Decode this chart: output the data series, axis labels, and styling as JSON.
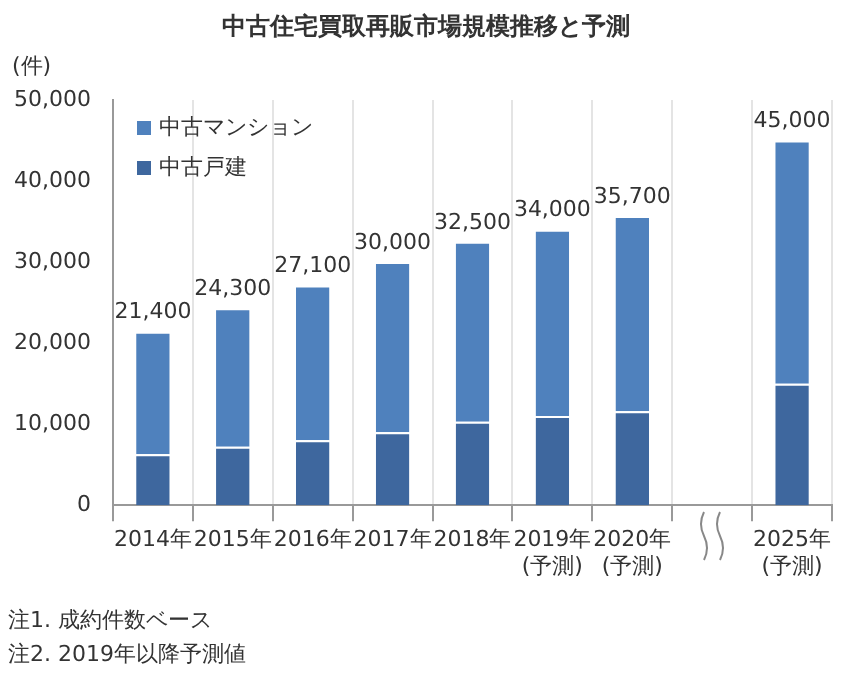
{
  "chart_data": {
    "type": "bar",
    "title": "中古住宅買取再販市場規模推移と予測",
    "ylabel": "(件)",
    "categories": [
      "2014年",
      "2015年",
      "2016年",
      "2017年",
      "2018年",
      "2019年\n(予測)",
      "2020年\n(予測)",
      null,
      "2025年\n(予測)"
    ],
    "series": [
      {
        "name": "中古戸建",
        "color": "#3e679e",
        "values": [
          6300,
          7200,
          8000,
          9000,
          10300,
          11000,
          11600,
          null,
          15000
        ]
      },
      {
        "name": "中古マンション",
        "color": "#4f81bd",
        "values": [
          15100,
          17100,
          19100,
          21000,
          22200,
          23000,
          24100,
          null,
          30000
        ]
      }
    ],
    "stacked": true,
    "totals": [
      "21,400",
      "24,300",
      "27,100",
      "30,000",
      "32,500",
      "34,000",
      "35,700",
      null,
      "45,000"
    ],
    "ylim": [
      0,
      50000
    ],
    "yticks": [
      {
        "value": 0,
        "label": "0"
      },
      {
        "value": 10000,
        "label": "10,000"
      },
      {
        "value": 20000,
        "label": "20,000"
      },
      {
        "value": 30000,
        "label": "30,000"
      },
      {
        "value": 40000,
        "label": "40,000"
      },
      {
        "value": 50000,
        "label": "50,000"
      }
    ],
    "grid": "x",
    "legend": "top left",
    "annotations": [
      "注1. 成約件数ベース",
      "注2. 2019年以降予測値"
    ]
  }
}
